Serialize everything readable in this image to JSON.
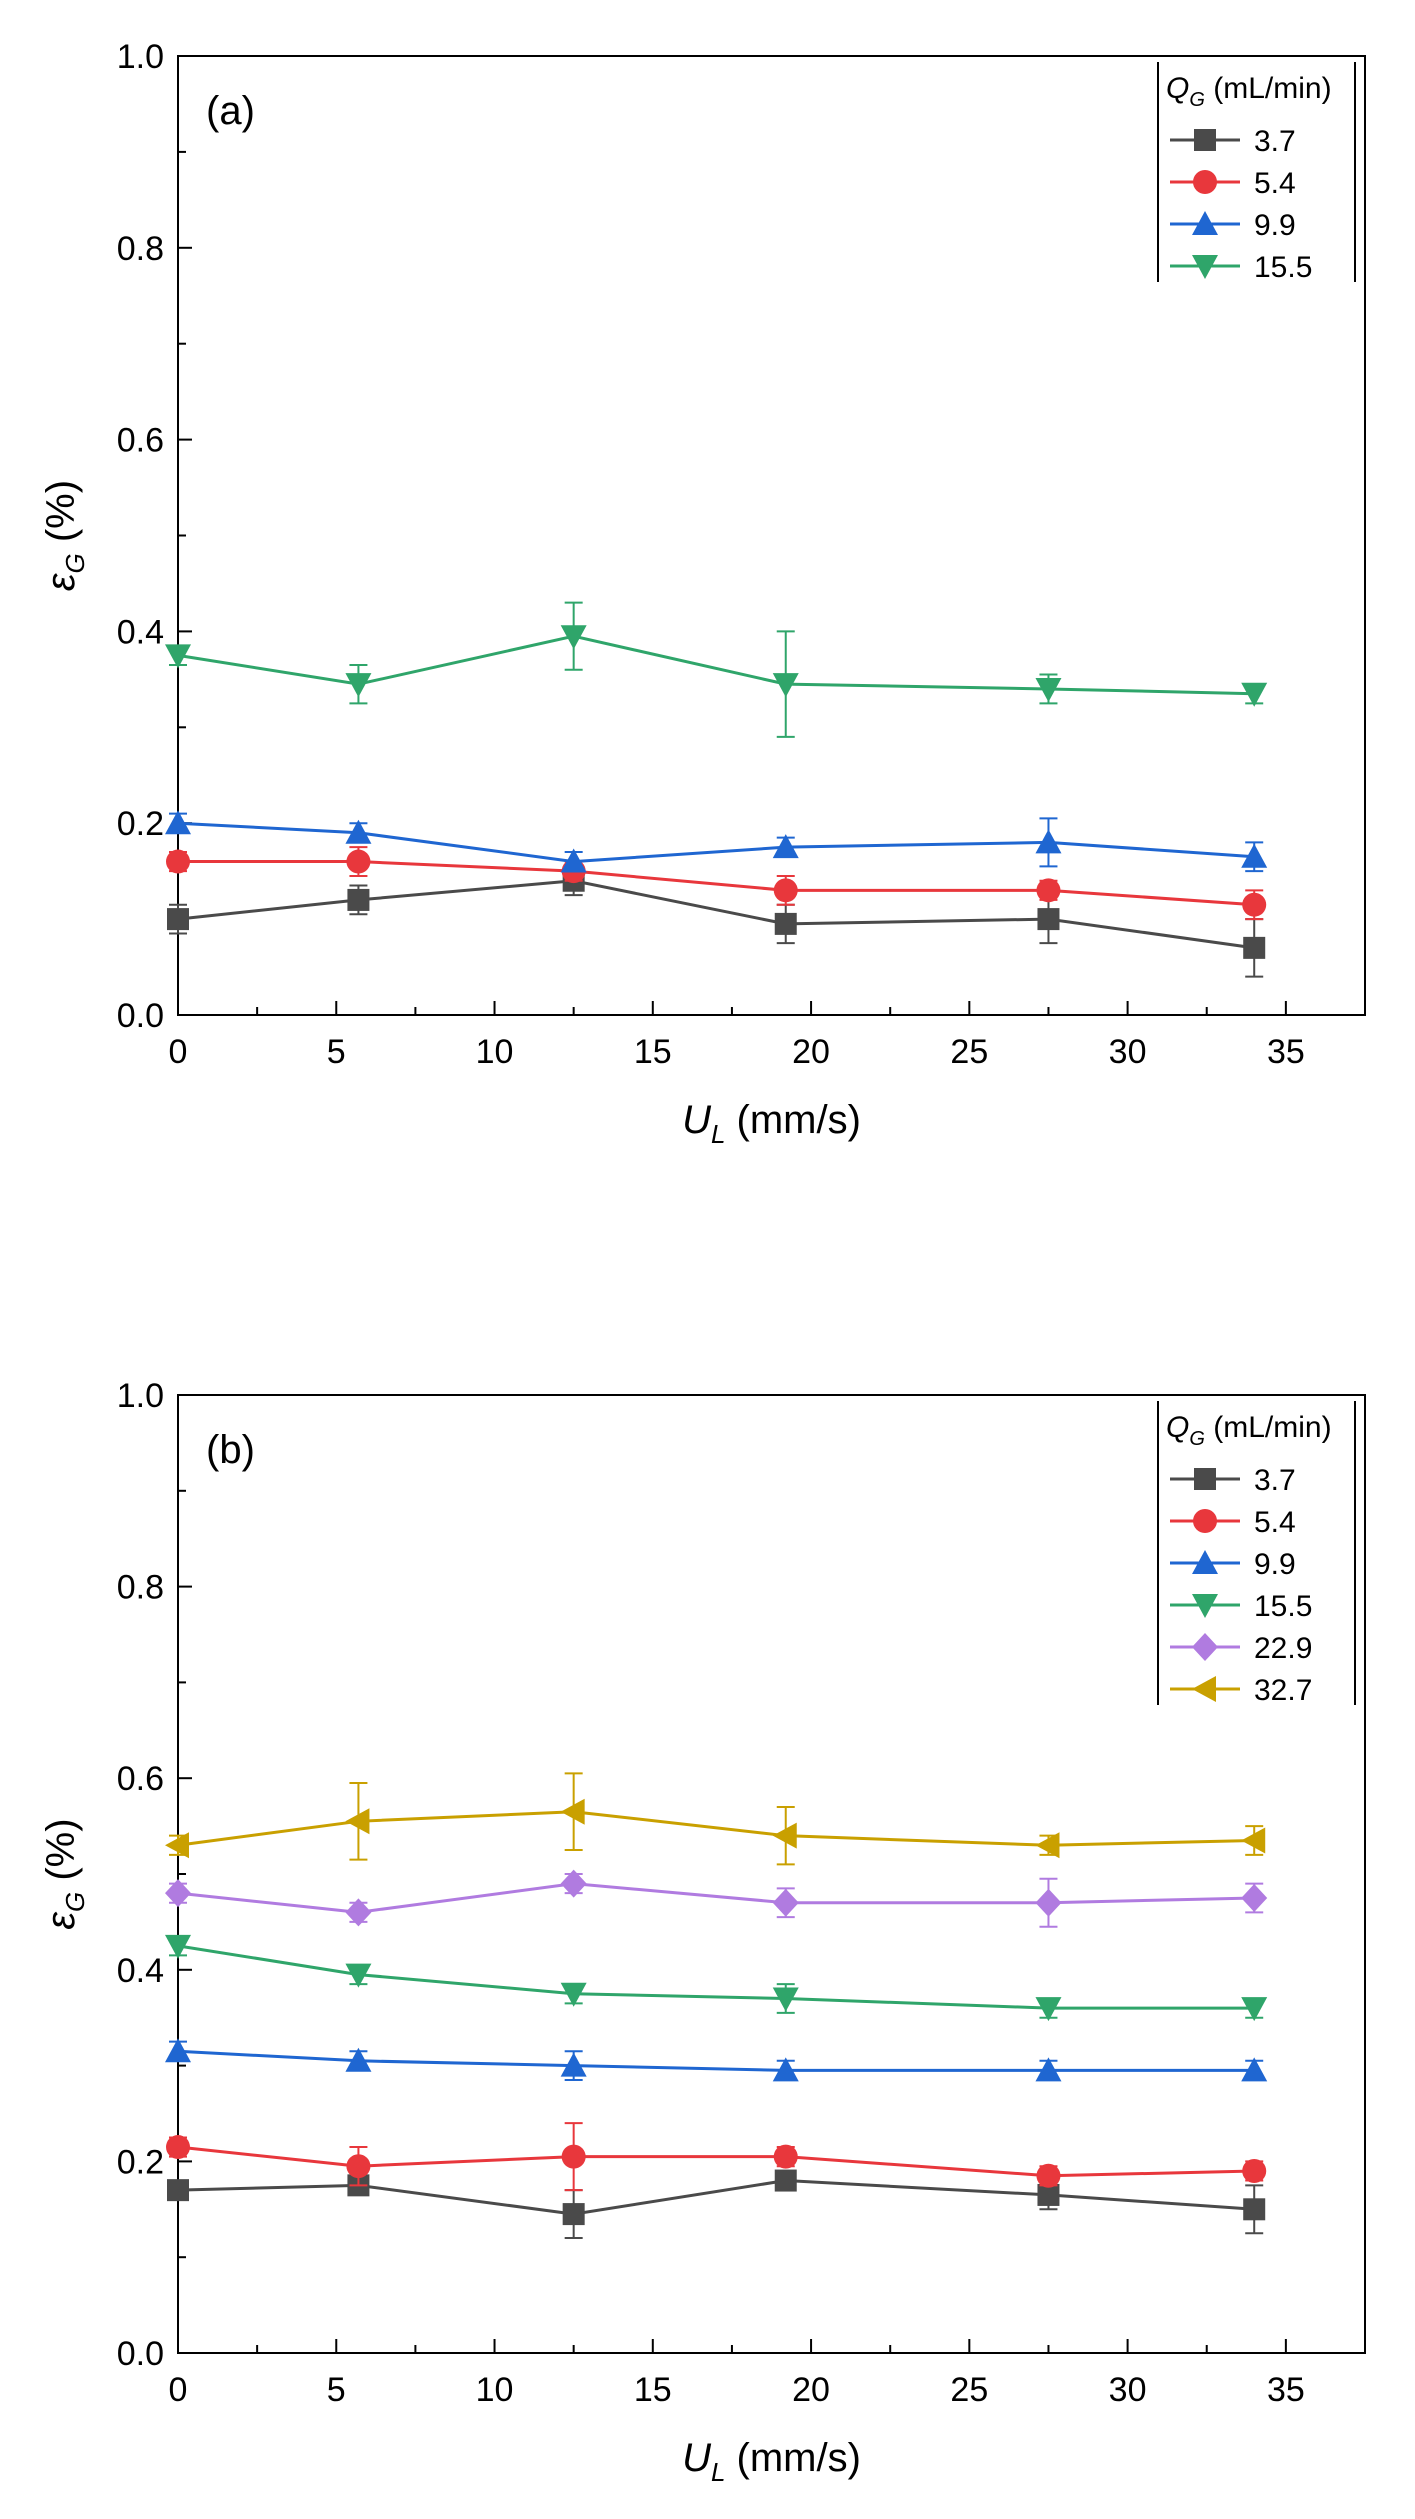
{
  "chart_data": [
    {
      "type": "line",
      "panel_label": "(a)",
      "xlabel": "U_L (mm/s)",
      "ylabel": "ε_G (%)",
      "xlim": [
        0,
        37.5
      ],
      "ylim": [
        0,
        1.0
      ],
      "xticks": [
        "0",
        "5",
        "10",
        "15",
        "20",
        "25",
        "30",
        "35"
      ],
      "yticks": [
        "0.0",
        "0.2",
        "0.4",
        "0.6",
        "0.8",
        "1.0"
      ],
      "x": [
        0,
        5.7,
        12.5,
        19.2,
        27.5,
        34.0
      ],
      "legend_title": "Q_G (mL/min)",
      "legend_position": "top-right",
      "series": [
        {
          "name": "3.7",
          "marker": "square",
          "color": "#4a4a4a",
          "values": [
            0.1,
            0.12,
            0.14,
            0.095,
            0.1,
            0.07
          ],
          "errors": [
            0.015,
            0.015,
            0.015,
            0.02,
            0.025,
            0.03
          ]
        },
        {
          "name": "5.4",
          "marker": "circle",
          "color": "#e8373c",
          "values": [
            0.16,
            0.16,
            0.15,
            0.13,
            0.13,
            0.115
          ],
          "errors": [
            0.01,
            0.015,
            0.01,
            0.015,
            0.01,
            0.015
          ]
        },
        {
          "name": "9.9",
          "marker": "triangle-up",
          "color": "#1f66d1",
          "values": [
            0.2,
            0.19,
            0.16,
            0.175,
            0.18,
            0.165
          ],
          "errors": [
            0.01,
            0.01,
            0.01,
            0.01,
            0.025,
            0.015
          ]
        },
        {
          "name": "15.5",
          "marker": "triangle-down",
          "color": "#2fa56a",
          "values": [
            0.375,
            0.345,
            0.395,
            0.345,
            0.34,
            0.335
          ],
          "errors": [
            0.01,
            0.02,
            0.035,
            0.055,
            0.015,
            0.01
          ]
        }
      ]
    },
    {
      "type": "line",
      "panel_label": "(b)",
      "xlabel": "U_L (mm/s)",
      "ylabel": "ε_G (%)",
      "xlim": [
        0,
        37.5
      ],
      "ylim": [
        0,
        1.0
      ],
      "xticks": [
        "0",
        "5",
        "10",
        "15",
        "20",
        "25",
        "30",
        "35"
      ],
      "yticks": [
        "0.0",
        "0.2",
        "0.4",
        "0.6",
        "0.8",
        "1.0"
      ],
      "x": [
        0,
        5.7,
        12.5,
        19.2,
        27.5,
        34.0
      ],
      "legend_title": "Q_G (mL/min)",
      "legend_position": "top-right",
      "series": [
        {
          "name": "3.7",
          "marker": "square",
          "color": "#4a4a4a",
          "values": [
            0.17,
            0.175,
            0.145,
            0.18,
            0.165,
            0.15
          ],
          "errors": [
            0.01,
            0.01,
            0.025,
            0.01,
            0.015,
            0.025
          ]
        },
        {
          "name": "5.4",
          "marker": "circle",
          "color": "#e8373c",
          "values": [
            0.215,
            0.195,
            0.205,
            0.205,
            0.185,
            0.19
          ],
          "errors": [
            0.01,
            0.02,
            0.035,
            0.01,
            0.01,
            0.01
          ]
        },
        {
          "name": "9.9",
          "marker": "triangle-up",
          "color": "#1f66d1",
          "values": [
            0.315,
            0.305,
            0.3,
            0.295,
            0.295,
            0.295
          ],
          "errors": [
            0.01,
            0.01,
            0.015,
            0.01,
            0.01,
            0.01
          ]
        },
        {
          "name": "15.5",
          "marker": "triangle-down",
          "color": "#2fa56a",
          "values": [
            0.425,
            0.395,
            0.375,
            0.37,
            0.36,
            0.36
          ],
          "errors": [
            0.01,
            0.01,
            0.01,
            0.015,
            0.01,
            0.01
          ]
        },
        {
          "name": "22.9",
          "marker": "diamond",
          "color": "#b07be0",
          "values": [
            0.48,
            0.46,
            0.49,
            0.47,
            0.47,
            0.475
          ],
          "errors": [
            0.01,
            0.01,
            0.01,
            0.015,
            0.025,
            0.015
          ]
        },
        {
          "name": "32.7",
          "marker": "triangle-left",
          "color": "#c9a000",
          "values": [
            0.53,
            0.555,
            0.565,
            0.54,
            0.53,
            0.535
          ],
          "errors": [
            0.01,
            0.04,
            0.04,
            0.03,
            0.01,
            0.015
          ]
        }
      ]
    }
  ]
}
